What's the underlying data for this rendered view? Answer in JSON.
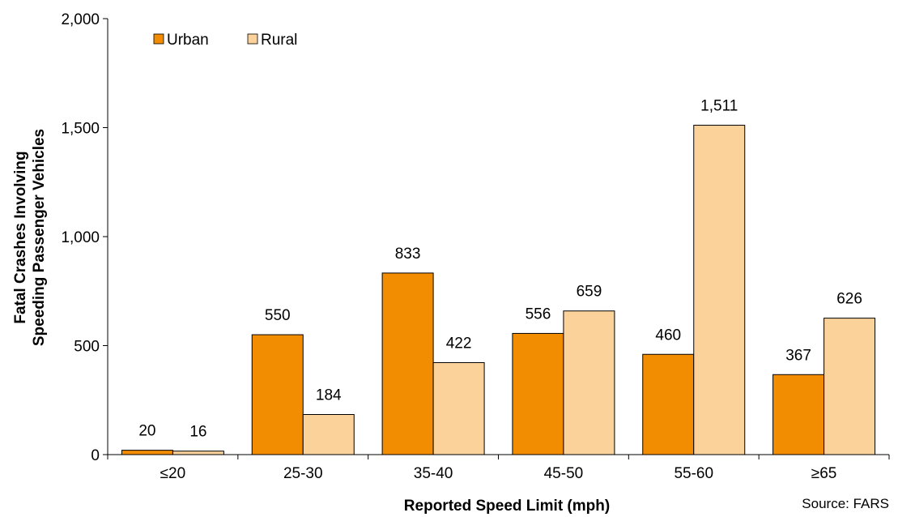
{
  "chart_data": {
    "type": "bar",
    "categories": [
      "≤20",
      "25-30",
      "35-40",
      "45-50",
      "55-60",
      "≥65"
    ],
    "series": [
      {
        "name": "Urban",
        "values": [
          20,
          550,
          833,
          556,
          460,
          367
        ],
        "color": "#F28C00"
      },
      {
        "name": "Rural",
        "values": [
          16,
          184,
          422,
          659,
          1511,
          626
        ],
        "color": "#FAD29A"
      }
    ],
    "data_labels": {
      "Urban": [
        "20",
        "550",
        "833",
        "556",
        "460",
        "367"
      ],
      "Rural": [
        "16",
        "184",
        "422",
        "659",
        "1,511",
        "626"
      ]
    },
    "xlabel": "Reported Speed Limit (mph)",
    "ylabel_lines": [
      "Fatal Crashes Involving",
      "Speeding Passenger Vehicles"
    ],
    "ylim": [
      0,
      2000
    ],
    "yticks": [
      0,
      500,
      1000,
      1500,
      2000
    ],
    "ytick_labels": [
      "0",
      "500",
      "1,000",
      "1,500",
      "2,000"
    ],
    "grid": false,
    "legend": "top-left",
    "source_note": "Source: FARS"
  }
}
